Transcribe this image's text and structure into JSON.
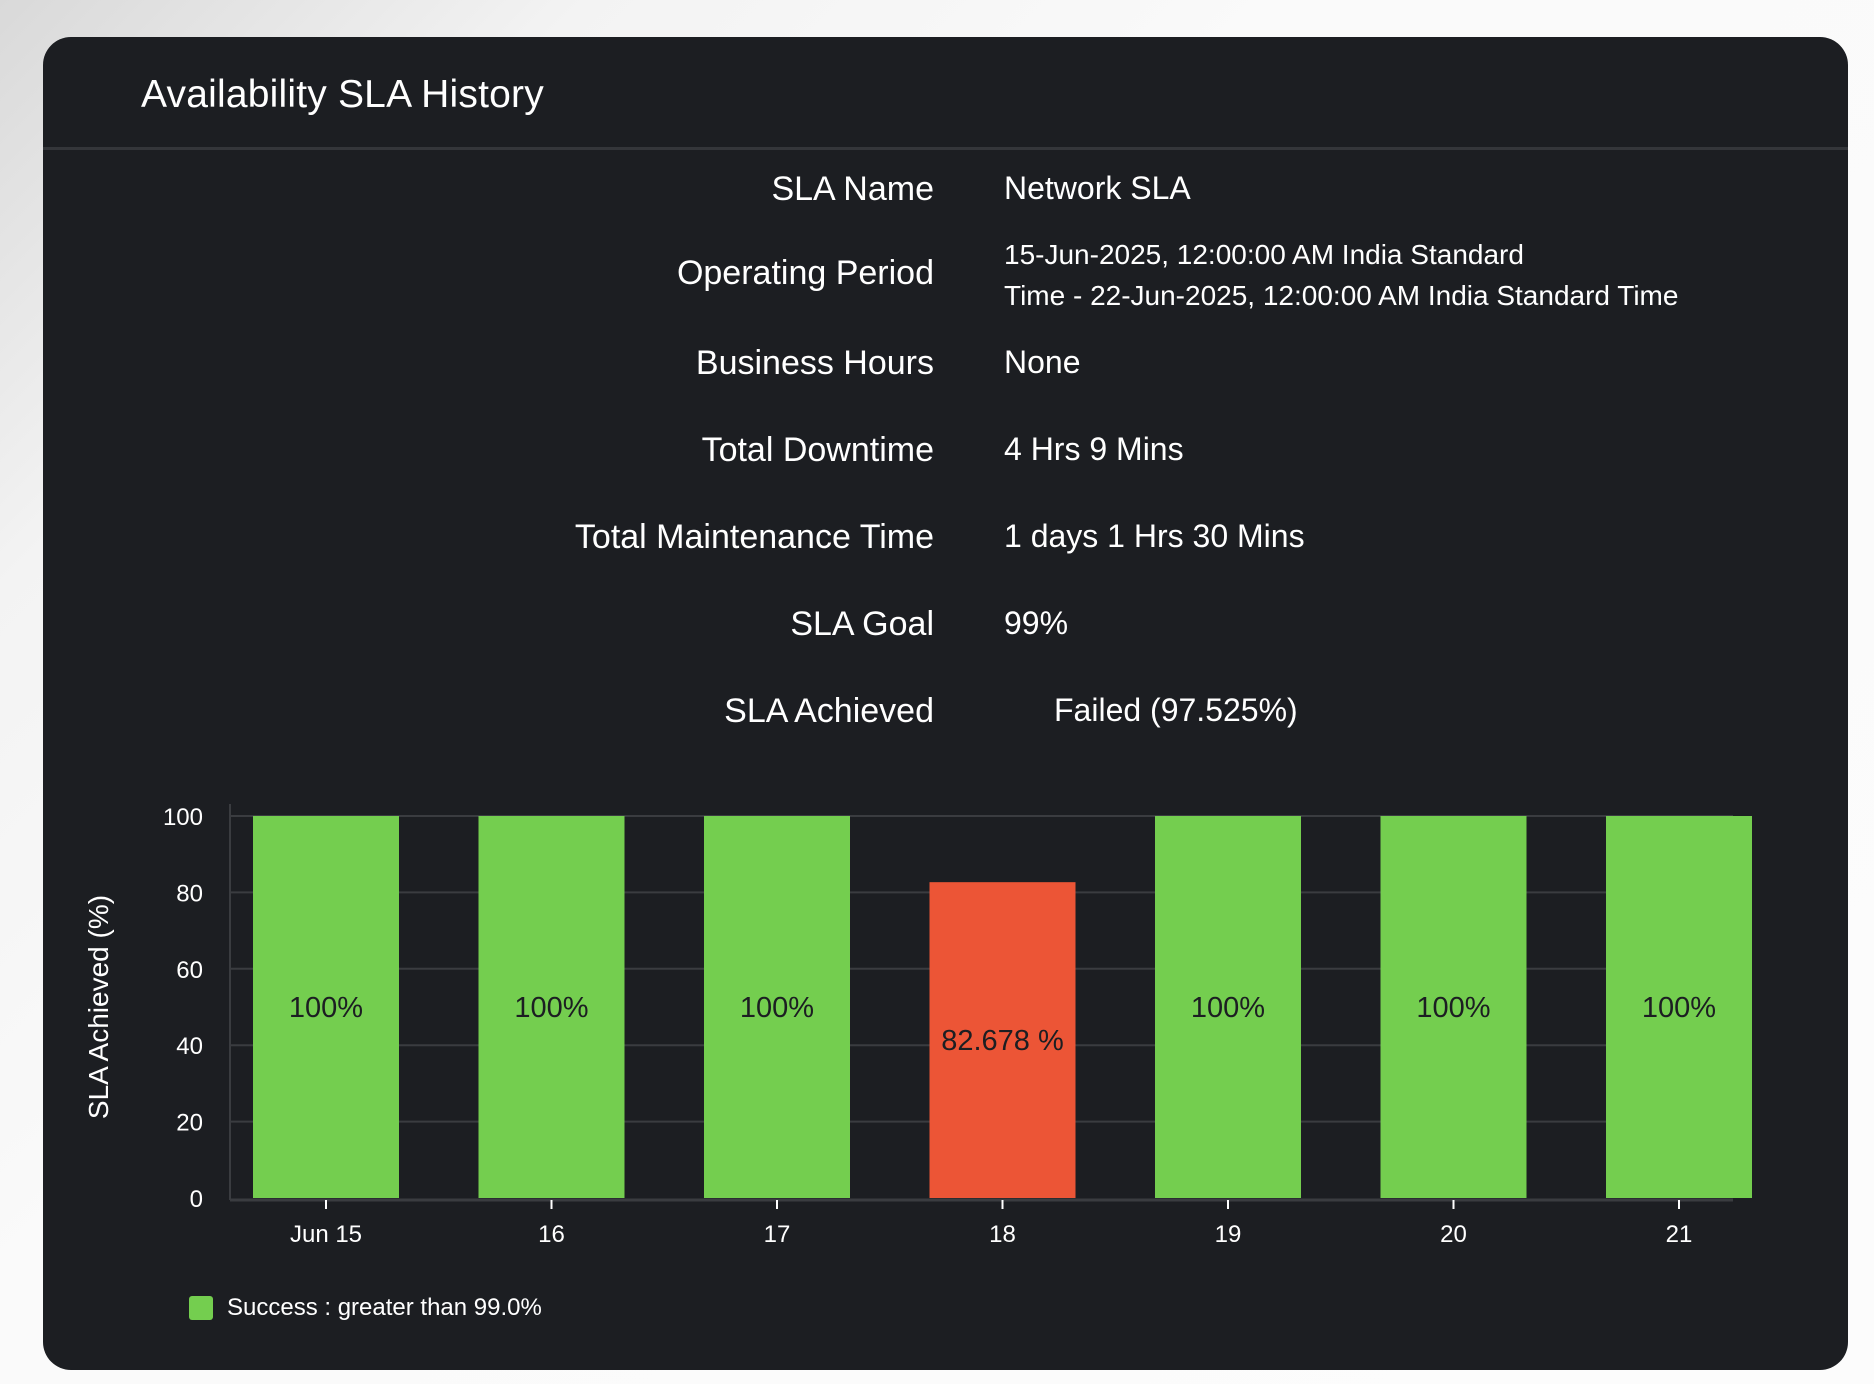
{
  "card": {
    "title": "Availability SLA History"
  },
  "details": [
    {
      "label": "SLA Name",
      "value": "Network SLA"
    },
    {
      "label": "Operating Period",
      "value_lines": [
        "15-Jun-2025, 12:00:00 AM India Standard",
        "Time - 22-Jun-2025, 12:00:00 AM India Standard Time"
      ]
    },
    {
      "label": "Business Hours",
      "value": "None"
    },
    {
      "label": "Total Downtime",
      "value": "4 Hrs 9 Mins"
    },
    {
      "label": "Total Maintenance Time",
      "value": "1 days 1 Hrs 30 Mins"
    },
    {
      "label": "SLA Goal",
      "value": "99%"
    },
    {
      "label": "SLA Achieved",
      "value": "Failed (97.525%)"
    }
  ],
  "colors": {
    "success": "#74ce4f",
    "failure": "#ec5536",
    "card_bg": "#1c1e22",
    "grid": "#3a3c40"
  },
  "chart_data": {
    "type": "bar",
    "title": "",
    "xlabel": "",
    "ylabel": "SLA Achieved (%)",
    "ylim": [
      0,
      100
    ],
    "yticks": [
      0,
      20,
      40,
      60,
      80,
      100
    ],
    "grid": true,
    "categories": [
      "Jun 15",
      "16",
      "17",
      "18",
      "19",
      "20",
      "21"
    ],
    "values": [
      100,
      100,
      100,
      82.678,
      100,
      100,
      100
    ],
    "data_labels": [
      "100%",
      "100%",
      "100%",
      "82.678 %",
      "100%",
      "100%",
      "100%"
    ],
    "status": [
      "success",
      "success",
      "success",
      "failure",
      "success",
      "success",
      "success"
    ],
    "legend": {
      "placement": "bottom-left",
      "entries": [
        {
          "label": "Success : greater than 99.0%",
          "color": "#74ce4f"
        }
      ]
    }
  }
}
